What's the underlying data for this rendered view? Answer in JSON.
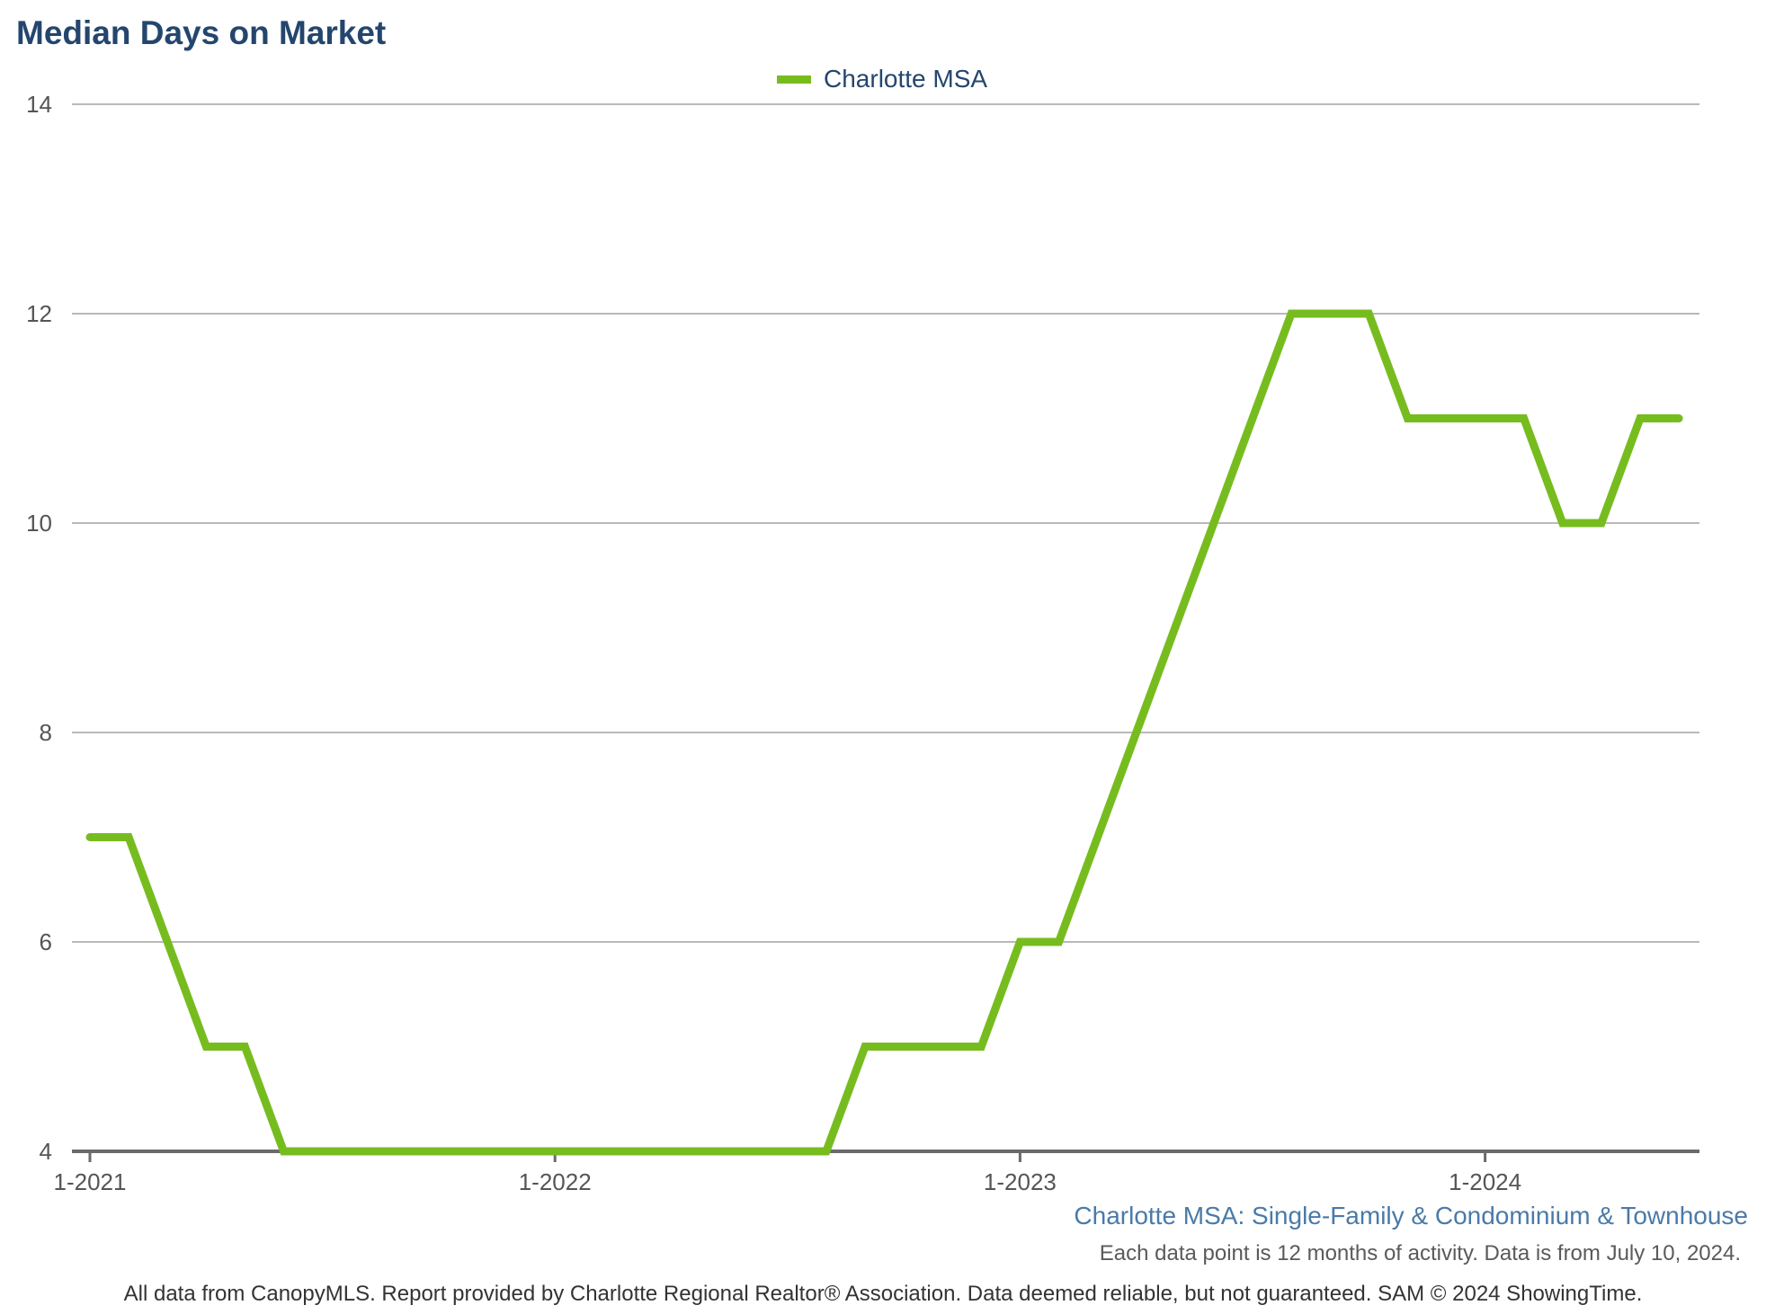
{
  "chart_data": {
    "type": "line",
    "title": "Median Days on Market",
    "xlabel": "",
    "ylabel": "",
    "ylim": [
      4,
      14
    ],
    "yticks": [
      "4",
      "6",
      "8",
      "10",
      "12",
      "14"
    ],
    "xticks": [
      "1-2021",
      "1-2022",
      "1-2023",
      "1-2024"
    ],
    "x": [
      "1-2021",
      "2-2021",
      "3-2021",
      "4-2021",
      "5-2021",
      "6-2021",
      "7-2021",
      "8-2021",
      "9-2021",
      "10-2021",
      "11-2021",
      "12-2021",
      "1-2022",
      "2-2022",
      "3-2022",
      "4-2022",
      "5-2022",
      "6-2022",
      "7-2022",
      "8-2022",
      "9-2022",
      "10-2022",
      "11-2022",
      "12-2022",
      "1-2023",
      "2-2023",
      "3-2023",
      "4-2023",
      "5-2023",
      "6-2023",
      "7-2023",
      "8-2023",
      "9-2023",
      "10-2023",
      "11-2023",
      "12-2023",
      "1-2024",
      "2-2024",
      "3-2024",
      "4-2024",
      "5-2024",
      "6-2024"
    ],
    "series": [
      {
        "name": "Charlotte MSA",
        "color": "#77bc1f",
        "values": [
          7,
          7,
          6,
          5,
          5,
          4,
          4,
          4,
          4,
          4,
          4,
          4,
          4,
          4,
          4,
          4,
          4,
          4,
          4,
          4,
          5,
          5,
          5,
          5,
          6,
          6,
          7,
          8,
          9,
          10,
          11,
          12,
          12,
          12,
          11,
          11,
          11,
          11,
          10,
          10,
          11,
          11
        ]
      }
    ],
    "grid": true,
    "legend": "top-center",
    "subtitle": "Charlotte MSA: Single-Family & Condominium & Townhouse",
    "note": "Each data point is 12 months of activity. Data is from July 10, 2024.",
    "footer": "All data from CanopyMLS. Report provided by Charlotte Regional Realtor® Association. Data deemed reliable, but not guaranteed. SAM © 2024 ShowingTime."
  }
}
